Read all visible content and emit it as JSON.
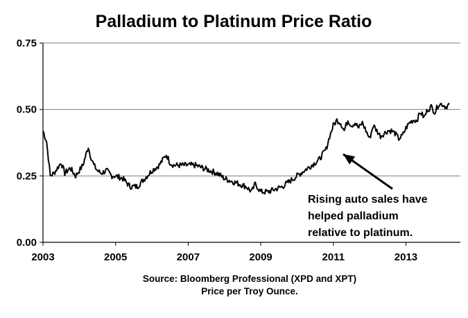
{
  "chart_data": {
    "type": "line",
    "title": "Palladium to Platinum Price Ratio",
    "xlabel": "",
    "ylabel": "",
    "xlim": [
      2003,
      2014.5
    ],
    "ylim": [
      0,
      0.75
    ],
    "y_ticks": [
      "0.75",
      "0.50",
      "0.25",
      "0.00"
    ],
    "y_tick_values": [
      0.75,
      0.5,
      0.25,
      0
    ],
    "x_ticks": [
      "2003",
      "2005",
      "2007",
      "2009",
      "2011",
      "2013"
    ],
    "x_tick_values": [
      2003,
      2005,
      2007,
      2009,
      2011,
      2013
    ],
    "grid": true,
    "legend": "none",
    "series": [
      {
        "x": [
          2003.0,
          2003.1,
          2003.2,
          2003.3,
          2003.4,
          2003.5,
          2003.6,
          2003.75,
          2003.9,
          2004.0,
          2004.1,
          2004.25,
          2004.3,
          2004.4,
          2004.5,
          2004.6,
          2004.75,
          2004.9,
          2005.0,
          2005.2,
          2005.4,
          2005.6,
          2005.8,
          2006.0,
          2006.2,
          2006.3,
          2006.4,
          2006.5,
          2006.6,
          2006.8,
          2007.0,
          2007.2,
          2007.4,
          2007.6,
          2007.8,
          2008.0,
          2008.2,
          2008.4,
          2008.6,
          2008.75,
          2008.85,
          2008.95,
          2009.0,
          2009.2,
          2009.4,
          2009.6,
          2009.8,
          2010.0,
          2010.2,
          2010.4,
          2010.6,
          2010.8,
          2010.9,
          2011.0,
          2011.1,
          2011.2,
          2011.3,
          2011.4,
          2011.5,
          2011.6,
          2011.7,
          2011.8,
          2011.9,
          2012.0,
          2012.1,
          2012.2,
          2012.3,
          2012.4,
          2012.5,
          2012.6,
          2012.7,
          2012.8,
          2012.9,
          2013.0,
          2013.1,
          2013.2,
          2013.3,
          2013.4,
          2013.5,
          2013.6,
          2013.7,
          2013.8,
          2013.9,
          2014.0,
          2014.1,
          2014.2
        ],
        "y": [
          0.42,
          0.38,
          0.25,
          0.26,
          0.28,
          0.3,
          0.26,
          0.28,
          0.25,
          0.27,
          0.29,
          0.36,
          0.33,
          0.29,
          0.27,
          0.26,
          0.27,
          0.25,
          0.25,
          0.24,
          0.21,
          0.21,
          0.24,
          0.27,
          0.29,
          0.31,
          0.33,
          0.3,
          0.29,
          0.29,
          0.29,
          0.29,
          0.28,
          0.27,
          0.26,
          0.24,
          0.23,
          0.22,
          0.21,
          0.19,
          0.22,
          0.2,
          0.19,
          0.19,
          0.2,
          0.21,
          0.23,
          0.25,
          0.27,
          0.29,
          0.31,
          0.35,
          0.4,
          0.44,
          0.46,
          0.45,
          0.42,
          0.46,
          0.44,
          0.45,
          0.43,
          0.45,
          0.42,
          0.39,
          0.44,
          0.42,
          0.4,
          0.41,
          0.42,
          0.42,
          0.41,
          0.39,
          0.4,
          0.43,
          0.45,
          0.46,
          0.46,
          0.49,
          0.47,
          0.5,
          0.51,
          0.49,
          0.52,
          0.52,
          0.51,
          0.52
        ]
      }
    ],
    "annotation": {
      "lines": [
        "Rising auto sales have",
        "helped palladium",
        "relative to platinum."
      ],
      "arrow_target": [
        2011.3,
        0.34
      ]
    },
    "source_lines": [
      "Source:  Bloomberg Professional (XPD and XPT)",
      "Price per Troy Ounce."
    ]
  }
}
